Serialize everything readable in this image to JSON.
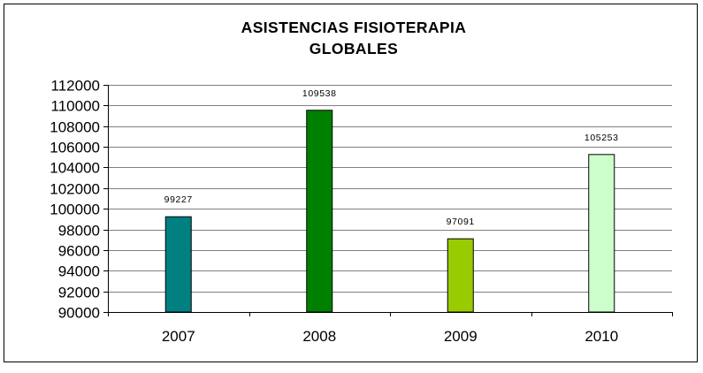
{
  "chart_data": {
    "type": "bar",
    "title_lines": [
      "ASISTENCIAS FISIOTERAPIA",
      "GLOBALES"
    ],
    "categories": [
      "2007",
      "2008",
      "2009",
      "2010"
    ],
    "values": [
      99227,
      109538,
      97091,
      105253
    ],
    "data_labels": [
      "99227",
      "109538",
      "97091",
      "105253"
    ],
    "bar_colors": [
      "#008080",
      "#008000",
      "#99cc00",
      "#ccffcc"
    ],
    "ylim": [
      90000,
      112000
    ],
    "yticks": [
      90000,
      92000,
      94000,
      96000,
      98000,
      100000,
      102000,
      104000,
      106000,
      108000,
      110000,
      112000
    ],
    "xlabel": "",
    "ylabel": "",
    "grid": true,
    "legend": false
  }
}
